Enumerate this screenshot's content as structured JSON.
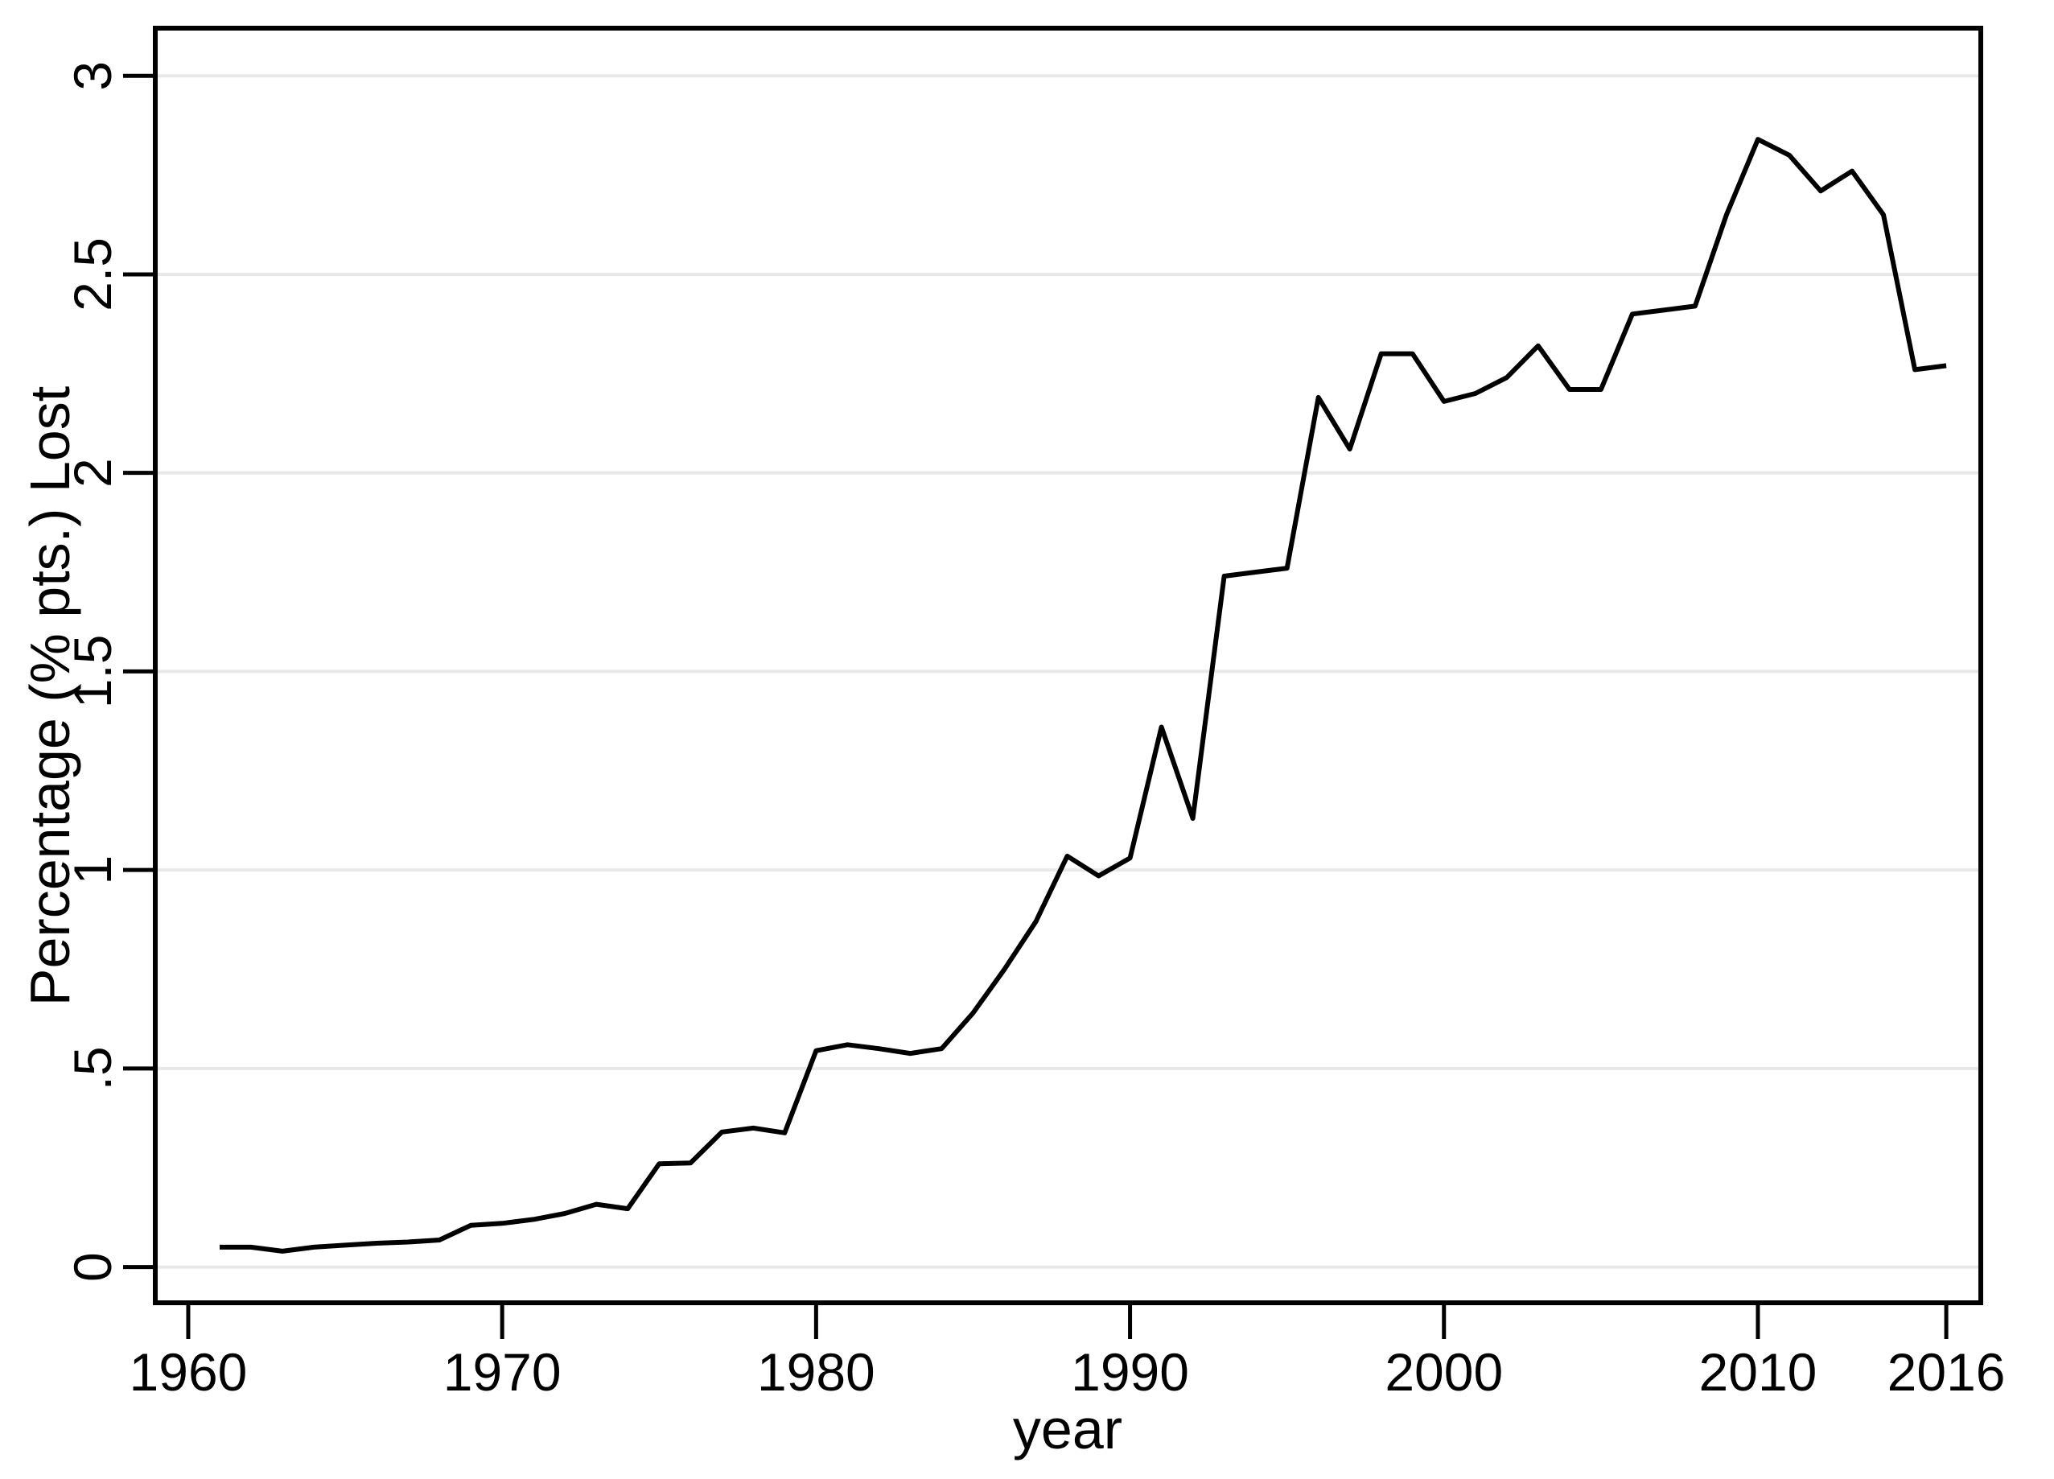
{
  "chart_data": {
    "type": "line",
    "title": "",
    "xlabel": "year",
    "ylabel": "Percentage (% pts.) Lost",
    "grid": "horizontal",
    "legend": "none",
    "line_color": "#000000",
    "gridline_color": "#e8e8e8",
    "background_color": "#ffffff",
    "xlim": [
      1958.95,
      2017.1
    ],
    "ylim": [
      -0.09,
      3.12
    ],
    "x_ticks": {
      "values": [
        1960,
        1970,
        1980,
        1990,
        2000,
        2010,
        2016
      ],
      "labels": [
        "1960",
        "1970",
        "1980",
        "1990",
        "2000",
        "2010",
        "2016"
      ]
    },
    "y_ticks": {
      "values": [
        0,
        0.5,
        1,
        1.5,
        2,
        2.5,
        3
      ],
      "labels": [
        "0",
        ".5",
        "1",
        "1.5",
        "2",
        "2.5",
        "3"
      ]
    },
    "series": [
      {
        "name": "percentage-points-lost",
        "x": [
          1961,
          1962,
          1963,
          1964,
          1965,
          1966,
          1967,
          1968,
          1969,
          1970,
          1971,
          1972,
          1973,
          1974,
          1975,
          1976,
          1977,
          1978,
          1979,
          1980,
          1981,
          1982,
          1983,
          1984,
          1985,
          1986,
          1987,
          1988,
          1989,
          1990,
          1991,
          1992,
          1993,
          1994,
          1995,
          1996,
          1997,
          1998,
          1999,
          2000,
          2001,
          2002,
          2003,
          2004,
          2005,
          2006,
          2007,
          2008,
          2009,
          2010,
          2011,
          2012,
          2013,
          2014,
          2015,
          2016
        ],
        "values": [
          0.05,
          0.05,
          0.04,
          0.05,
          0.055,
          0.06,
          0.063,
          0.068,
          0.105,
          0.11,
          0.12,
          0.135,
          0.158,
          0.147,
          0.26,
          0.262,
          0.34,
          0.35,
          0.338,
          0.545,
          0.56,
          0.55,
          0.538,
          0.55,
          0.64,
          0.75,
          0.87,
          1.035,
          0.985,
          1.03,
          1.36,
          1.13,
          1.74,
          1.75,
          1.76,
          2.19,
          2.06,
          2.3,
          2.3,
          2.18,
          2.2,
          2.24,
          2.32,
          2.21,
          2.21,
          2.4,
          2.41,
          2.42,
          2.65,
          2.84,
          2.8,
          2.71,
          2.76,
          2.65,
          2.26,
          2.27
        ]
      }
    ]
  }
}
